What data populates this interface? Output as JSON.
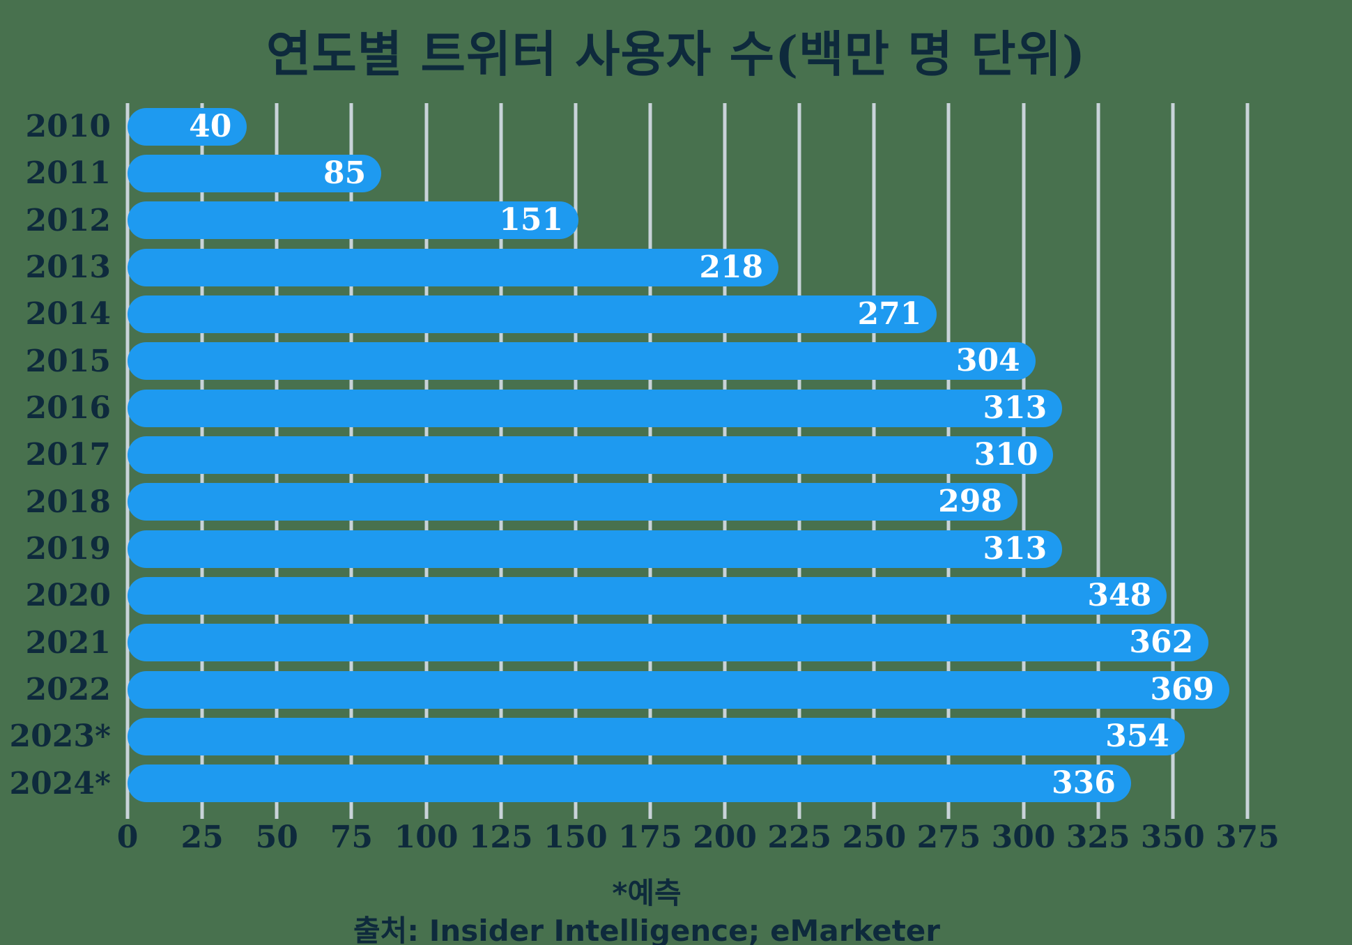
{
  "title": "연도별 트위터 사용자 수(백만 명 단위)",
  "footnote": "*예측",
  "source": "출처: Insider Intelligence; eMarketer",
  "colors": {
    "background": "#48714E",
    "bar": "#1E9AF0",
    "gridline": "#C9D3D9",
    "text": "#0E2A3C",
    "value_label": "#FFFFFF"
  },
  "chart_data": {
    "type": "bar",
    "orientation": "horizontal",
    "title": "연도별 트위터 사용자 수(백만 명 단위)",
    "categories": [
      "2010",
      "2011",
      "2012",
      "2013",
      "2014",
      "2015",
      "2016",
      "2017",
      "2018",
      "2019",
      "2020",
      "2021",
      "2022",
      "2023*",
      "2024*"
    ],
    "values": [
      40,
      85,
      151,
      218,
      271,
      304,
      313,
      310,
      298,
      313,
      348,
      362,
      369,
      354,
      336
    ],
    "xlabel": "",
    "ylabel": "",
    "xlim": [
      0,
      375
    ],
    "xticks": [
      0,
      25,
      50,
      75,
      100,
      125,
      150,
      175,
      200,
      225,
      250,
      275,
      300,
      325,
      350,
      375
    ],
    "grid": true,
    "legend": false,
    "value_labels": "inside-end"
  }
}
